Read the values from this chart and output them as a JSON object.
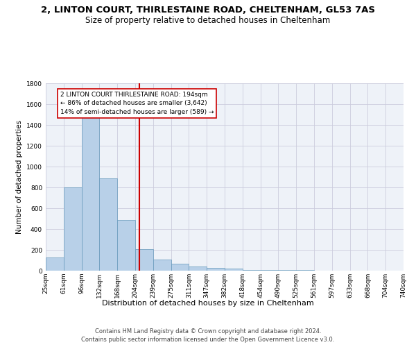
{
  "title": "2, LINTON COURT, THIRLESTAINE ROAD, CHELTENHAM, GL53 7AS",
  "subtitle": "Size of property relative to detached houses in Cheltenham",
  "xlabel": "Distribution of detached houses by size in Cheltenham",
  "ylabel": "Number of detached properties",
  "bar_values": [
    125,
    800,
    1475,
    885,
    490,
    205,
    105,
    65,
    40,
    30,
    20,
    10,
    5,
    5,
    5,
    2,
    2,
    1,
    1,
    1
  ],
  "bin_labels": [
    "25sqm",
    "61sqm",
    "96sqm",
    "132sqm",
    "168sqm",
    "204sqm",
    "239sqm",
    "275sqm",
    "311sqm",
    "347sqm",
    "382sqm",
    "418sqm",
    "454sqm",
    "490sqm",
    "525sqm",
    "561sqm",
    "597sqm",
    "633sqm",
    "668sqm",
    "704sqm",
    "740sqm"
  ],
  "bar_color": "#b8d0e8",
  "bar_edge_color": "#6699bb",
  "grid_color": "#ccccdd",
  "background_color": "#eef2f8",
  "annotation_text": "2 LINTON COURT THIRLESTAINE ROAD: 194sqm\n← 86% of detached houses are smaller (3,642)\n14% of semi-detached houses are larger (589) →",
  "annotation_box_color": "#ffffff",
  "annotation_border_color": "#cc0000",
  "ylim": [
    0,
    1800
  ],
  "yticks": [
    0,
    200,
    400,
    600,
    800,
    1000,
    1200,
    1400,
    1600,
    1800
  ],
  "footer_text": "Contains HM Land Registry data © Crown copyright and database right 2024.\nContains public sector information licensed under the Open Government Licence v3.0.",
  "title_fontsize": 9.5,
  "subtitle_fontsize": 8.5,
  "label_fontsize": 8,
  "tick_fontsize": 6.5,
  "footer_fontsize": 6,
  "ylabel_fontsize": 7.5
}
